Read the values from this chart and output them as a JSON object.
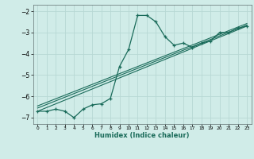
{
  "xlabel": "Humidex (Indice chaleur)",
  "bg_color": "#d0ece8",
  "grid_color": "#b8d8d4",
  "line_color": "#1a6b5a",
  "xlim": [
    -0.5,
    23.5
  ],
  "ylim": [
    -7.3,
    -1.7
  ],
  "yticks": [
    -7,
    -6,
    -5,
    -4,
    -3,
    -2
  ],
  "xticks": [
    0,
    1,
    2,
    3,
    4,
    5,
    6,
    7,
    8,
    9,
    10,
    11,
    12,
    13,
    14,
    15,
    16,
    17,
    18,
    19,
    20,
    21,
    22,
    23
  ],
  "curve1_x": [
    0,
    1,
    2,
    3,
    4,
    5,
    6,
    7,
    8,
    9,
    10,
    11,
    12,
    13,
    14,
    15,
    16,
    17,
    18,
    19,
    20,
    21,
    22,
    23
  ],
  "curve1_y": [
    -6.7,
    -6.7,
    -6.6,
    -6.7,
    -7.0,
    -6.6,
    -6.4,
    -6.35,
    -6.1,
    -4.6,
    -3.8,
    -2.2,
    -2.2,
    -2.5,
    -3.2,
    -3.6,
    -3.5,
    -3.7,
    -3.5,
    -3.4,
    -3.0,
    -3.0,
    -2.8,
    -2.7
  ],
  "line2_x": [
    0,
    23
  ],
  "line2_y": [
    -6.7,
    -2.7
  ],
  "line3_x": [
    0,
    23
  ],
  "line3_y": [
    -6.55,
    -2.65
  ],
  "line4_x": [
    0,
    23
  ],
  "line4_y": [
    -6.45,
    -2.58
  ]
}
